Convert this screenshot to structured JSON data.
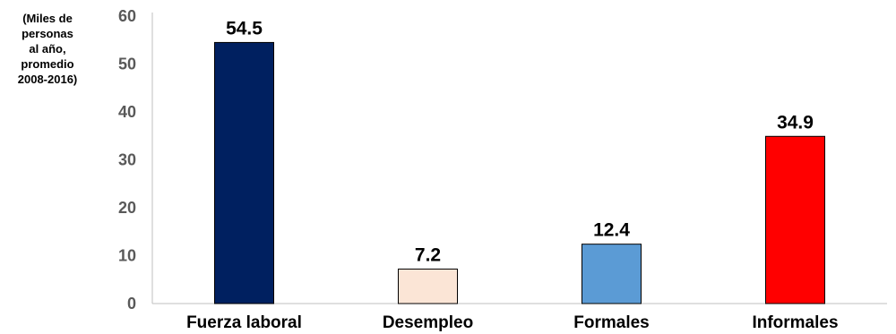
{
  "chart_data": {
    "type": "bar",
    "title": "",
    "xlabel": "",
    "ylabel_lines": [
      "(Miles de",
      "personas",
      "al año,",
      "promedio",
      "2008-2016)"
    ],
    "categories": [
      "Fuerza laboral",
      "Desempleo",
      "Formales",
      "Informales"
    ],
    "values": [
      54.5,
      7.2,
      12.4,
      34.9
    ],
    "data_labels": [
      "54.5",
      "7.2",
      "12.4",
      "34.9"
    ],
    "bar_colors": [
      "#002060",
      "#FBE5D6",
      "#5B9BD5",
      "#FF0000"
    ],
    "ylim": [
      0,
      60
    ],
    "yticks": [
      0,
      10,
      20,
      30,
      40,
      50,
      60
    ],
    "grid": false,
    "legend": "none"
  }
}
